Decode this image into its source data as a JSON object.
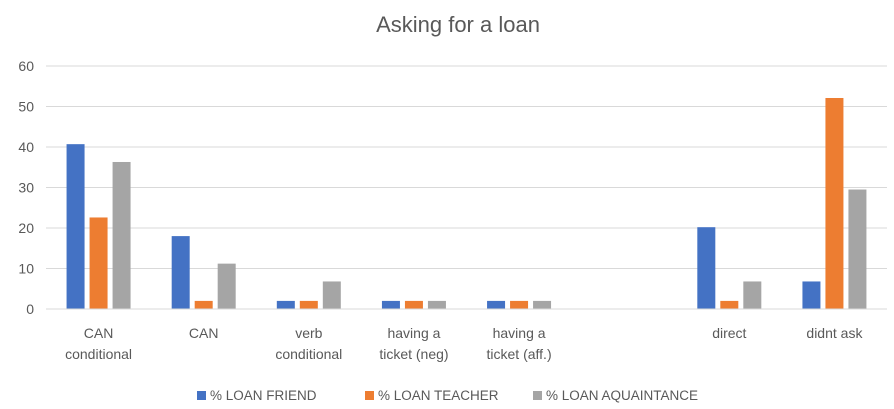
{
  "chart_data": {
    "type": "bar",
    "title": "Asking for a loan",
    "xlabel": "",
    "ylabel": "",
    "ylim": [
      0,
      60
    ],
    "yticks": [
      "0",
      "10",
      "20",
      "30",
      "40",
      "50",
      "60"
    ],
    "grid": true,
    "legend_position": "bottom",
    "categories": [
      [
        "CAN",
        "conditional"
      ],
      [
        "CAN"
      ],
      [
        "verb",
        "conditional"
      ],
      [
        "having a",
        "ticket (neg)"
      ],
      [
        "having a",
        "ticket (aff.)"
      ],
      [
        ""
      ],
      [
        "direct"
      ],
      [
        "didnt ask"
      ]
    ],
    "series": [
      {
        "name": "% LOAN FRIEND",
        "color": "#4472C4",
        "values": [
          40.7,
          18,
          2,
          2,
          2,
          0,
          20.2,
          6.8
        ]
      },
      {
        "name": "% LOAN TEACHER",
        "color": "#ED7D31",
        "values": [
          22.6,
          2,
          2,
          2,
          2,
          0,
          2,
          52.1
        ]
      },
      {
        "name": "% LOAN AQUAINTANCE",
        "color": "#A5A5A5",
        "values": [
          36.3,
          11.2,
          6.8,
          2,
          2,
          0,
          6.8,
          29.5
        ]
      }
    ]
  }
}
